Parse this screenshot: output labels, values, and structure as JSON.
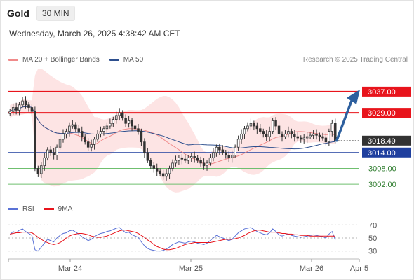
{
  "header": {
    "symbol": "Gold",
    "timeframe": "30 MIN"
  },
  "timestamp": "Wednesday, March 26, 2025 4:38:42 AM CET",
  "legend": {
    "ma20_label": "MA 20 + Bollinger Bands",
    "ma50_label": "MA 50",
    "credit": "Research © 2025 Trading Central"
  },
  "rsi_legend": {
    "rsi_label": "RSI",
    "ma_label": "9MA"
  },
  "colors": {
    "resistance": "#e8141c",
    "support": "#1f3f9e",
    "target_line": "#6fbf6f",
    "target_text": "#2f7d2f",
    "ma20": "#f08a8a",
    "ma50": "#2d4f8e",
    "band_fill": "#fde4e4",
    "candle": "#333333",
    "arrow": "#2d5f9e",
    "rsi": "#5a72d6",
    "rsi_ma": "#e8141c"
  },
  "chart_data": [
    {
      "type": "candlestick",
      "ylim": [
        2997,
        3042
      ],
      "x_labels": [
        "Mar 24",
        "Mar 25",
        "Mar 26",
        "Apr 5"
      ],
      "levels": [
        {
          "value": 3037.0,
          "label": "3037.00",
          "kind": "resistance"
        },
        {
          "value": 3029.0,
          "label": "3029.00",
          "kind": "resistance"
        },
        {
          "value": 3014.0,
          "label": "3014.00",
          "kind": "support"
        },
        {
          "value": 3008.0,
          "label": "3008.00",
          "kind": "target"
        },
        {
          "value": 3002.0,
          "label": "3002.00",
          "kind": "target"
        }
      ],
      "last_price": {
        "value": 3018.49,
        "label": "3018.49"
      },
      "projection": {
        "from": 3018.5,
        "to": 3037.0
      },
      "close": [
        3029.5,
        3031.0,
        3030.0,
        3032.0,
        3033.5,
        3032.0,
        3031.0,
        3029.5,
        3008.0,
        3006.0,
        3009.0,
        3012.0,
        3015.0,
        3014.0,
        3013.0,
        3016.0,
        3019.0,
        3021.0,
        3022.0,
        3024.0,
        3024.5,
        3023.0,
        3022.0,
        3020.0,
        3018.0,
        3016.0,
        3017.0,
        3019.0,
        3021.0,
        3022.0,
        3023.0,
        3024.0,
        3025.0,
        3026.5,
        3028.0,
        3029.0,
        3027.0,
        3025.0,
        3026.0,
        3024.0,
        3023.0,
        3022.0,
        3018.0,
        3014.0,
        3011.0,
        3009.0,
        3008.0,
        3007.0,
        3006.0,
        3005.0,
        3006.0,
        3008.0,
        3010.0,
        3011.0,
        3012.0,
        3011.5,
        3011.0,
        3012.0,
        3012.5,
        3012.0,
        3011.0,
        3010.0,
        3009.0,
        3010.0,
        3012.0,
        3014.0,
        3016.0,
        3015.0,
        3014.0,
        3013.0,
        3012.0,
        3013.0,
        3016.0,
        3019.0,
        3021.0,
        3023.0,
        3024.0,
        3025.0,
        3024.0,
        3023.0,
        3022.0,
        3021.0,
        3020.0,
        3022.0,
        3026.0,
        3024.0,
        3021.0,
        3020.0,
        3021.0,
        3022.0,
        3021.0,
        3020.0,
        3019.5,
        3019.0,
        3019.5,
        3020.0,
        3020.5,
        3021.0,
        3020.5,
        3020.0,
        3019.5,
        3018.0,
        3022.0,
        3025.0,
        3018.49
      ]
    },
    {
      "type": "line",
      "title": "RSI",
      "ylim": [
        20,
        80
      ],
      "ticks": [
        70,
        50,
        30
      ],
      "series": [
        {
          "name": "RSI",
          "values": [
            55,
            60,
            58,
            62,
            64,
            60,
            57,
            54,
            32,
            30,
            36,
            42,
            48,
            46,
            44,
            50,
            54,
            57,
            58,
            61,
            62,
            59,
            56,
            52,
            49,
            46,
            48,
            52,
            55,
            57,
            58,
            60,
            61,
            63,
            65,
            66,
            62,
            58,
            59,
            55,
            53,
            51,
            44,
            38,
            34,
            32,
            31,
            30,
            30,
            31,
            33,
            36,
            40,
            42,
            44,
            43,
            42,
            44,
            45,
            44,
            42,
            41,
            40,
            42,
            46,
            50,
            54,
            52,
            50,
            48,
            46,
            48,
            53,
            58,
            61,
            64,
            65,
            66,
            63,
            60,
            58,
            56,
            55,
            58,
            64,
            60,
            55,
            53,
            55,
            56,
            54,
            53,
            52,
            51,
            52,
            53,
            54,
            55,
            54,
            53,
            52,
            50,
            56,
            60,
            47
          ]
        },
        {
          "name": "9MA",
          "values": [
            56,
            57,
            58,
            58,
            59,
            59,
            59,
            58,
            55,
            51,
            48,
            45,
            43,
            41,
            40,
            41,
            43,
            46,
            50,
            53,
            55,
            56,
            57,
            57,
            56,
            55,
            53,
            52,
            51,
            51,
            52,
            53,
            55,
            57,
            59,
            61,
            62,
            62,
            61,
            60,
            59,
            57,
            54,
            51,
            47,
            44,
            40,
            37,
            35,
            33,
            32,
            32,
            33,
            34,
            36,
            38,
            40,
            41,
            42,
            43,
            43,
            43,
            43,
            43,
            43,
            44,
            45,
            46,
            47,
            48,
            48,
            48,
            49,
            50,
            52,
            54,
            57,
            59,
            61,
            62,
            62,
            61,
            60,
            59,
            59,
            59,
            58,
            57,
            57,
            56,
            56,
            55,
            55,
            54,
            54,
            54,
            53,
            53,
            53,
            53,
            53,
            53,
            53,
            53,
            53
          ]
        }
      ]
    }
  ]
}
